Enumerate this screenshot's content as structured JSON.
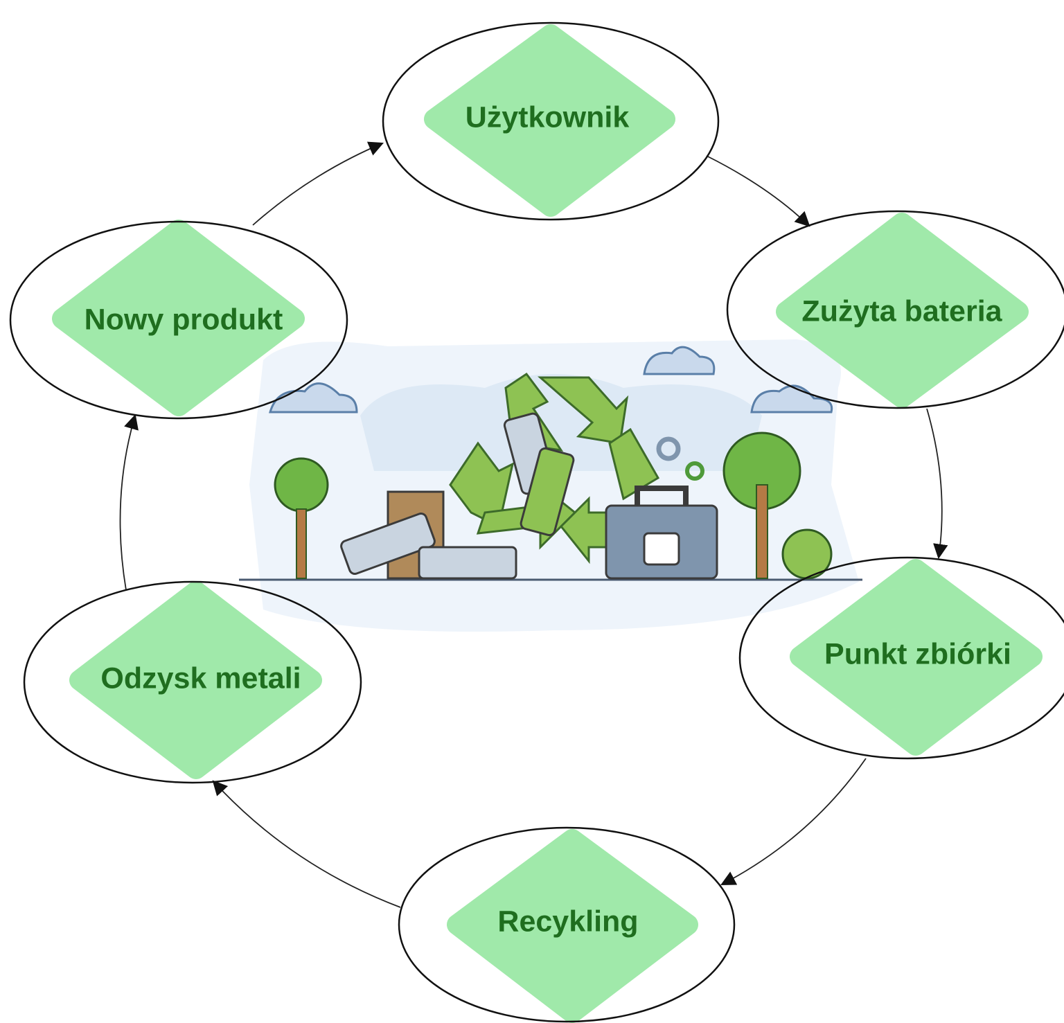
{
  "nodes": [
    {
      "label": "Użytkownik"
    },
    {
      "label": "Zużyta bateria"
    },
    {
      "label": "Punkt zbiórki"
    },
    {
      "label": "Recykling"
    },
    {
      "label": "Odzysk metali"
    },
    {
      "label": "Nowy produkt"
    }
  ]
}
